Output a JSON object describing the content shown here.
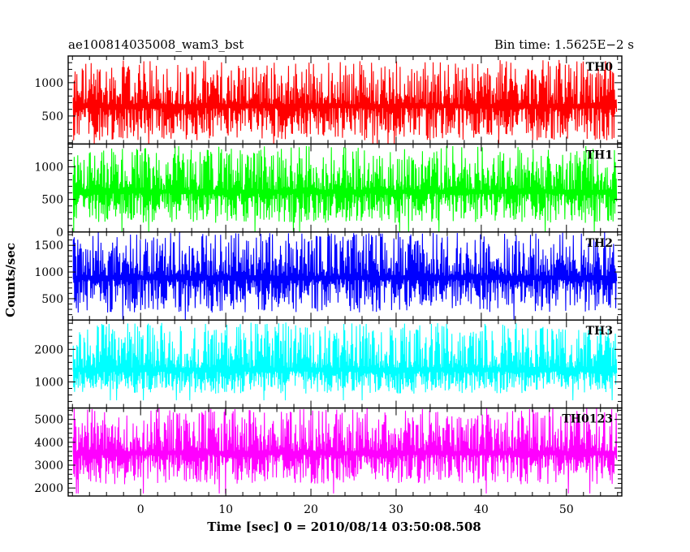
{
  "header": {
    "left_title": "ae100814035008_wam3_bst",
    "right_title": "Bin time: 1.5625E−2 s"
  },
  "chart_data": {
    "type": "line",
    "title": "ae100814035008_wam3_bst",
    "subtitle": "Bin time: 1.5625E−2 s",
    "xlabel": "Time [sec] 0 = 2010/08/14 03:50:08.508",
    "ylabel": "Counts/sec",
    "xlim": [
      -8.5,
      56.5
    ],
    "data_x_range": [
      -7.9,
      55.9
    ],
    "bin_time_s": 0.015625,
    "x_ticks": [
      0,
      10,
      20,
      30,
      40,
      50
    ],
    "grid": false,
    "legend": "none",
    "series": [
      {
        "name": "TH0",
        "color": "#ff0000",
        "ylim": [
          80,
          1400
        ],
        "y_ticks": [
          500,
          1000
        ],
        "y_tick_labels": [
          "500",
          "1000"
        ],
        "minor_step": 100,
        "baseline": 135,
        "mean": 620,
        "max": 1320
      },
      {
        "name": "TH1",
        "color": "#00ff00",
        "ylim": [
          0,
          1350
        ],
        "y_ticks": [
          0,
          500,
          1000
        ],
        "y_tick_labels": [
          "0",
          "500",
          "1000"
        ],
        "minor_step": 100,
        "baseline": 140,
        "mean": 590,
        "max": 1300
      },
      {
        "name": "TH2",
        "color": "#0000ff",
        "ylim": [
          100,
          1750
        ],
        "y_ticks": [
          500,
          1000,
          1500
        ],
        "y_tick_labels": [
          "500",
          "1000",
          "1500"
        ],
        "minor_step": 100,
        "baseline": 240,
        "mean": 860,
        "max": 1720
      },
      {
        "name": "TH3",
        "color": "#00ffff",
        "ylim": [
          200,
          2900
        ],
        "y_ticks": [
          1000,
          2000
        ],
        "y_tick_labels": [
          "1000",
          "2000"
        ],
        "minor_step": 200,
        "baseline": 640,
        "mean": 1320,
        "max": 2780
      },
      {
        "name": "TH0123",
        "color": "#ff00ff",
        "ylim": [
          1650,
          5500
        ],
        "y_ticks": [
          2000,
          3000,
          4000,
          5000
        ],
        "y_tick_labels": [
          "2000",
          "3000",
          "4000",
          "5000"
        ],
        "minor_step": 200,
        "baseline": 2150,
        "mean": 3450,
        "max": 5450
      }
    ]
  }
}
